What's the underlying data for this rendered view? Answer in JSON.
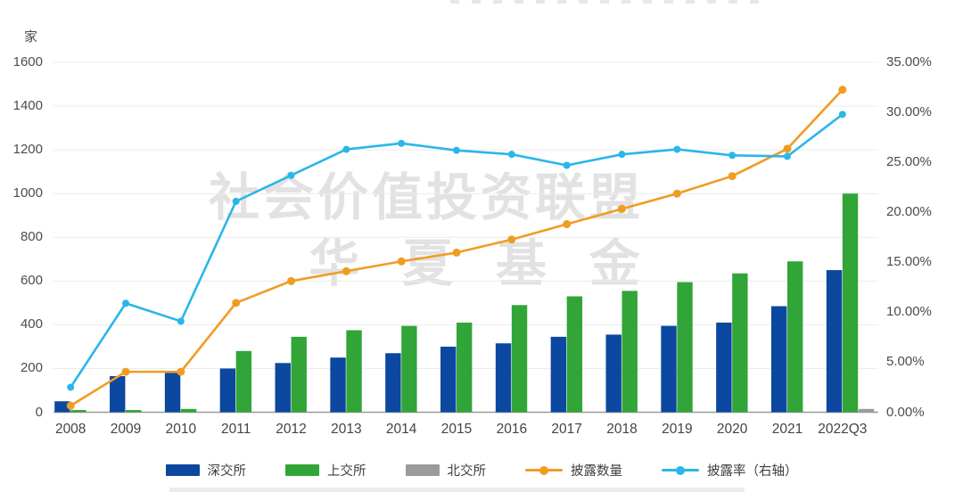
{
  "watermark": {
    "line1": "社会价值投资联盟",
    "line2": "华 夏 基 金"
  },
  "colors": {
    "shenzhen_blue": "#0C47A0",
    "shanghai_green": "#31A538",
    "beijing_gray": "#9B9B9B",
    "disclosure_orange": "#F09C23",
    "rate_cyan": "#2AB6E9",
    "gridline": "#ececec",
    "axis_line": "#9a9a9a",
    "tick_text": "#4c4c4c"
  },
  "chart_data": {
    "type": "combo-bar-line",
    "categories": [
      "2008",
      "2009",
      "2010",
      "2011",
      "2012",
      "2013",
      "2014",
      "2015",
      "2016",
      "2017",
      "2018",
      "2019",
      "2020",
      "2021",
      "2022Q3"
    ],
    "series": [
      {
        "name": "深交所",
        "type": "bar",
        "axis": "left",
        "color": "#0C47A0",
        "values": [
          50,
          165,
          180,
          200,
          225,
          250,
          270,
          300,
          315,
          345,
          355,
          395,
          410,
          485,
          650
        ]
      },
      {
        "name": "上交所",
        "type": "bar",
        "axis": "left",
        "color": "#31A538",
        "values": [
          10,
          10,
          15,
          280,
          345,
          375,
          395,
          410,
          490,
          530,
          555,
          595,
          635,
          690,
          1000
        ]
      },
      {
        "name": "北交所",
        "type": "bar",
        "axis": "left",
        "color": "#9B9B9B",
        "values": [
          0,
          0,
          0,
          0,
          0,
          0,
          0,
          0,
          0,
          0,
          0,
          0,
          0,
          0,
          15
        ]
      },
      {
        "name": "披露数量",
        "type": "line",
        "axis": "left",
        "color": "#F09C23",
        "values": [
          30,
          185,
          185,
          500,
          600,
          645,
          690,
          730,
          790,
          860,
          930,
          1000,
          1080,
          1205,
          1475
        ]
      },
      {
        "name": "披露率（右轴）",
        "type": "line",
        "axis": "right",
        "color": "#2AB6E9",
        "values": [
          2.5,
          10.9,
          9.1,
          21.1,
          23.7,
          26.3,
          26.9,
          26.2,
          25.8,
          24.7,
          25.8,
          26.3,
          25.7,
          25.6,
          29.8
        ]
      }
    ],
    "left_axis": {
      "unit": "家",
      "min": 0,
      "max": 1600,
      "step": 200,
      "ticks": [
        "0",
        "200",
        "400",
        "600",
        "800",
        "1000",
        "1200",
        "1400",
        "1600"
      ]
    },
    "right_axis": {
      "min": 0,
      "max": 35,
      "step": 5,
      "ticks": [
        "0.00%",
        "5.00%",
        "10.00%",
        "15.00%",
        "20.00%",
        "25.00%",
        "30.00%",
        "35.00%"
      ]
    },
    "grid": true,
    "legend_position": "bottom"
  },
  "legend": {
    "items": [
      {
        "label": "深交所",
        "color": "#0C47A0",
        "glyph": "rect"
      },
      {
        "label": "上交所",
        "color": "#31A538",
        "glyph": "rect"
      },
      {
        "label": "北交所",
        "color": "#9B9B9B",
        "glyph": "rect"
      },
      {
        "label": "披露数量",
        "color": "#F09C23",
        "glyph": "line-dot"
      },
      {
        "label": "披露率（右轴）",
        "color": "#2AB6E9",
        "glyph": "line-dot"
      }
    ]
  }
}
